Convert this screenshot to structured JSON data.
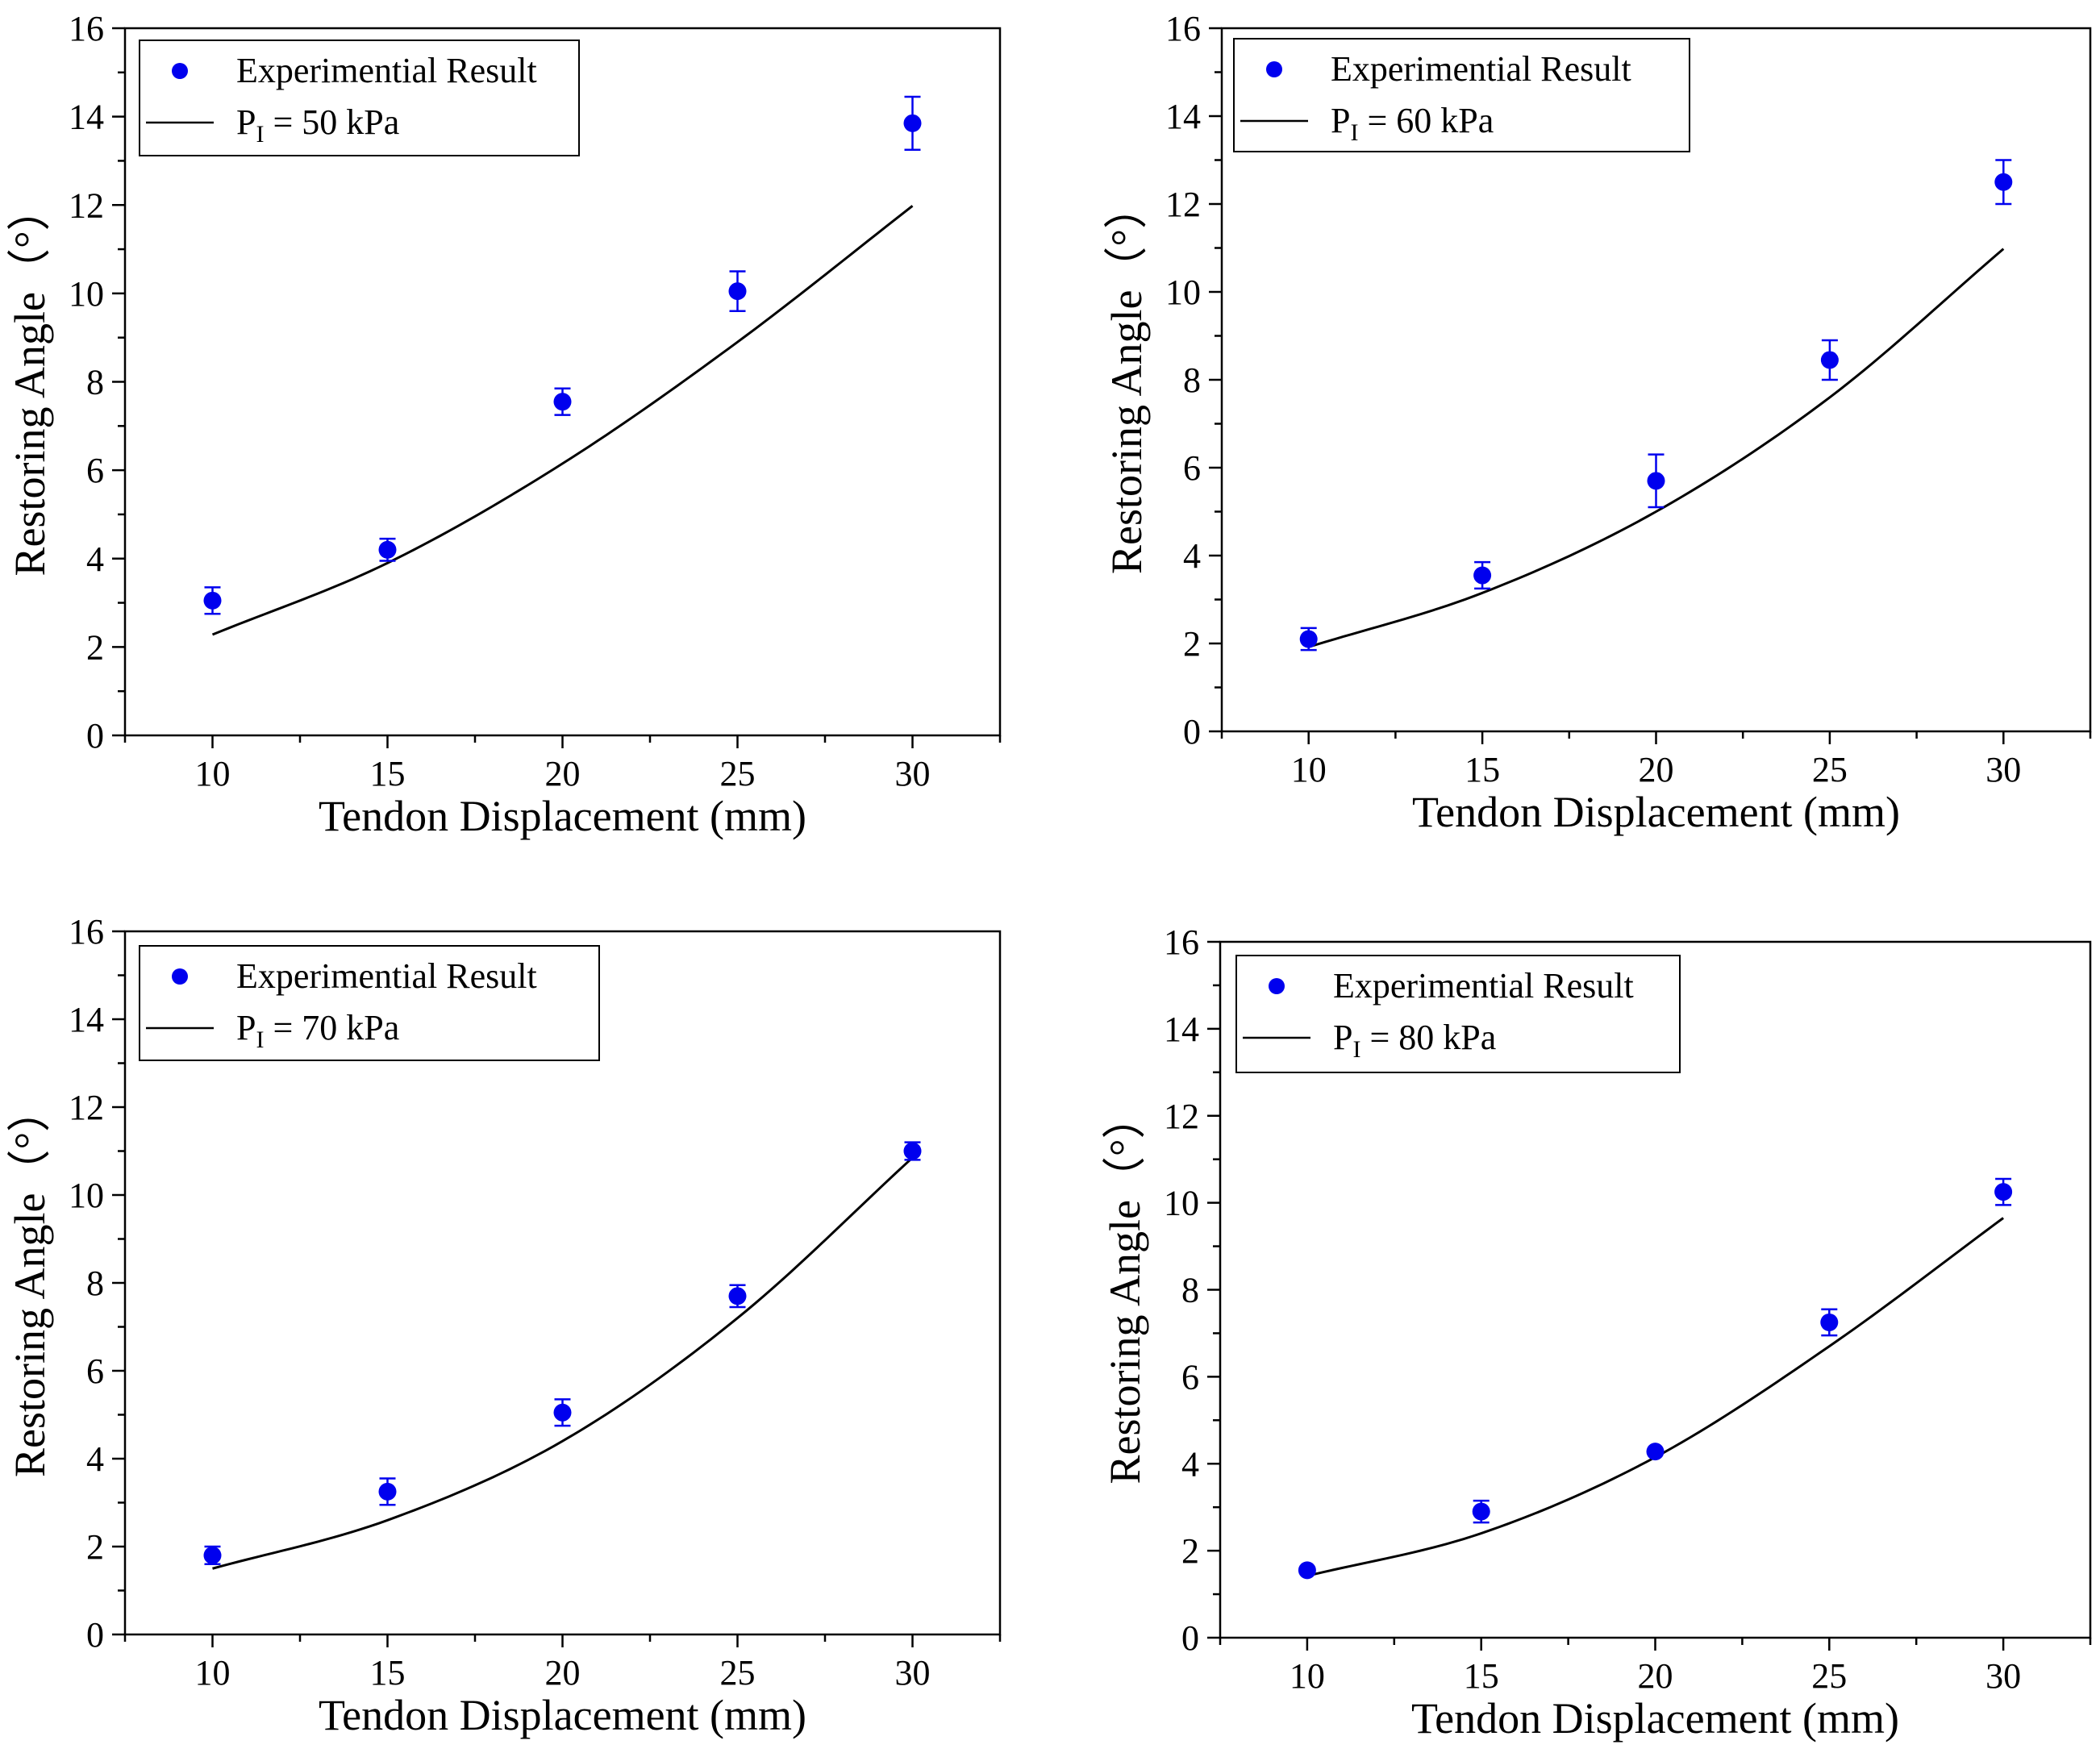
{
  "chart_data": [
    {
      "type": "scatter",
      "panel": "top-left",
      "xlabel": "Tendon Displacement (mm)",
      "ylabel": "Restoring Angle（°）",
      "xlim": [
        7.5,
        32.5
      ],
      "ylim": [
        0,
        16
      ],
      "xticks": [
        10,
        15,
        20,
        25,
        30
      ],
      "yticks": [
        0,
        2,
        4,
        6,
        8,
        10,
        12,
        14,
        16
      ],
      "legend_position": "top-left",
      "legend": {
        "experimental": "Experimential Result",
        "model_prefix": "P",
        "model_sub": "I",
        "model_suffix": " = 50 kPa"
      },
      "experimental": {
        "name": "Experimential Result",
        "color": "#0000ee",
        "x": [
          10,
          15,
          20,
          25,
          30
        ],
        "y": [
          3.05,
          4.2,
          7.55,
          10.05,
          13.85
        ],
        "err": [
          0.3,
          0.25,
          0.3,
          0.45,
          0.6
        ]
      },
      "model": {
        "name": "P_I = 50 kPa",
        "color": "#000000",
        "x": [
          10,
          15,
          20,
          25,
          30
        ],
        "y": [
          2.28,
          3.9,
          6.15,
          8.9,
          11.98
        ]
      }
    },
    {
      "type": "scatter",
      "panel": "top-right",
      "xlabel": "Tendon Displacement (mm)",
      "ylabel": "Restoring Angle（°）",
      "xlim": [
        7.5,
        32.5
      ],
      "ylim": [
        0,
        16
      ],
      "xticks": [
        10,
        15,
        20,
        25,
        30
      ],
      "yticks": [
        0,
        2,
        4,
        6,
        8,
        10,
        12,
        14,
        16
      ],
      "legend_position": "top-left",
      "legend": {
        "experimental": "Experimential Result",
        "model_prefix": "P",
        "model_sub": "I",
        "model_suffix": " = 60 kPa"
      },
      "experimental": {
        "name": "Experimential Result",
        "color": "#0000ee",
        "x": [
          10,
          15,
          20,
          25,
          30
        ],
        "y": [
          2.1,
          3.55,
          5.7,
          8.45,
          12.5
        ],
        "err": [
          0.25,
          0.3,
          0.6,
          0.45,
          0.5
        ]
      },
      "model": {
        "name": "P_I = 60 kPa",
        "color": "#000000",
        "x": [
          10,
          15,
          20,
          25,
          30
        ],
        "y": [
          1.92,
          3.15,
          5.0,
          7.6,
          10.98
        ]
      }
    },
    {
      "type": "scatter",
      "panel": "bottom-left",
      "xlabel": "Tendon Displacement (mm)",
      "ylabel": "Restoring Angle（°）",
      "xlim": [
        7.5,
        32.5
      ],
      "ylim": [
        0,
        16
      ],
      "xticks": [
        10,
        15,
        20,
        25,
        30
      ],
      "yticks": [
        0,
        2,
        4,
        6,
        8,
        10,
        12,
        14,
        16
      ],
      "legend_position": "top-left",
      "legend": {
        "experimental": "Experimential Result",
        "model_prefix": "P",
        "model_sub": "I",
        "model_suffix": " = 70 kPa"
      },
      "experimental": {
        "name": "Experimential Result",
        "color": "#0000ee",
        "x": [
          10,
          15,
          20,
          25,
          30
        ],
        "y": [
          1.8,
          3.25,
          5.05,
          7.7,
          11.0
        ],
        "err": [
          0.2,
          0.3,
          0.3,
          0.25,
          0.2
        ]
      },
      "model": {
        "name": "P_I = 70 kPa",
        "color": "#000000",
        "x": [
          10,
          15,
          20,
          25,
          30
        ],
        "y": [
          1.5,
          2.6,
          4.4,
          7.2,
          10.85
        ]
      }
    },
    {
      "type": "scatter",
      "panel": "bottom-right",
      "xlabel": "Tendon Displacement (mm)",
      "ylabel": "Restoring Angle（°）",
      "xlim": [
        7.5,
        32.5
      ],
      "ylim": [
        0,
        16
      ],
      "xticks": [
        10,
        15,
        20,
        25,
        30
      ],
      "yticks": [
        0,
        2,
        4,
        6,
        8,
        10,
        12,
        14,
        16
      ],
      "legend_position": "top-left",
      "legend": {
        "experimental": "Experimential Result",
        "model_prefix": "P",
        "model_sub": "I",
        "model_suffix": " = 80 kPa"
      },
      "experimental": {
        "name": "Experimential Result",
        "color": "#0000ee",
        "x": [
          10,
          15,
          20,
          25,
          30
        ],
        "y": [
          1.55,
          2.9,
          4.28,
          7.25,
          10.25
        ],
        "err": [
          0.05,
          0.25,
          0.05,
          0.3,
          0.3
        ]
      },
      "model": {
        "name": "P_I = 80 kPa",
        "color": "#000000",
        "x": [
          10,
          15,
          20,
          25,
          30
        ],
        "y": [
          1.42,
          2.4,
          4.15,
          6.7,
          9.65
        ]
      }
    }
  ]
}
